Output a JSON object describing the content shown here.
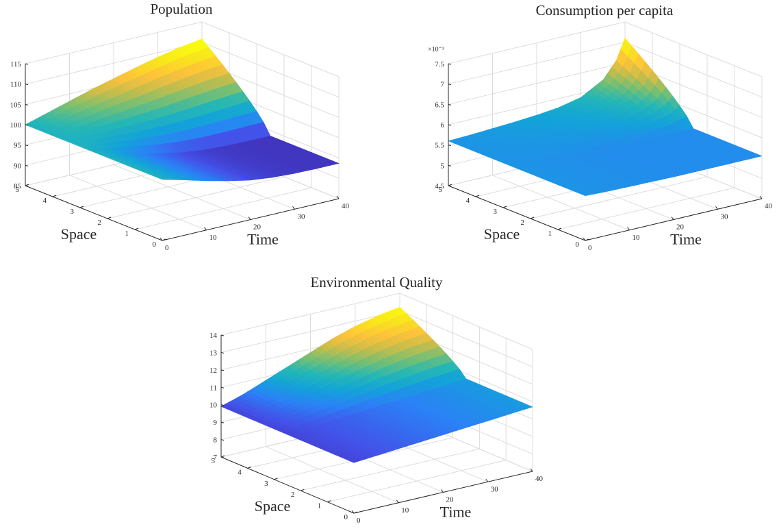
{
  "figure": {
    "colormap": [
      "#3e26a8",
      "#4450e8",
      "#2b81f6",
      "#13a3d9",
      "#25b7b5",
      "#73bf75",
      "#c8bd4a",
      "#fec23b",
      "#f8e51d",
      "#f9fb0e"
    ]
  },
  "chart_data": [
    {
      "type": "surface",
      "title": "Population",
      "xlabel": "Time",
      "ylabel": "Space",
      "zlabel": "",
      "xlim": [
        0,
        40
      ],
      "ylim": [
        0,
        5
      ],
      "zlim": [
        85,
        115
      ],
      "x_ticks": [
        "0",
        "10",
        "20",
        "30",
        "40"
      ],
      "y_ticks": [
        "0",
        "1",
        "2",
        "3",
        "4",
        "5"
      ],
      "z_ticks": [
        "85",
        "90",
        "95",
        "100",
        "105",
        "110",
        "115"
      ],
      "z_exponent": "",
      "grid": true,
      "clim": [
        93,
        110
      ],
      "profile": {
        "x": [
          0,
          5,
          10,
          15,
          20,
          25,
          30,
          35,
          40
        ],
        "boundary_space0": [
          100,
          98.6,
          97.1,
          95.8,
          94.7,
          94.1,
          93.8,
          93.7,
          93.7
        ],
        "boundary_space5": [
          100,
          101.6,
          103.2,
          104.8,
          106.2,
          107.6,
          108.9,
          110.0,
          110.8
        ],
        "interface_space": 2.5
      }
    },
    {
      "type": "surface",
      "title": "Consumption per capita",
      "xlabel": "Time",
      "ylabel": "Space",
      "zlabel": "",
      "xlim": [
        0,
        40
      ],
      "ylim": [
        0,
        5
      ],
      "zlim": [
        4.5,
        7.5
      ],
      "x_ticks": [
        "0",
        "10",
        "20",
        "30",
        "40"
      ],
      "y_ticks": [
        "0",
        "1",
        "2",
        "3",
        "4",
        "5"
      ],
      "z_ticks": [
        "4.5",
        "5",
        "5.5",
        "6",
        "6.5",
        "7",
        "7.5"
      ],
      "z_exponent": "×10⁻³",
      "grid": true,
      "clim": [
        5.0,
        7.1
      ],
      "profile": {
        "x": [
          0,
          5,
          10,
          15,
          20,
          25,
          30,
          35,
          38,
          40
        ],
        "boundary_space0": [
          5.6,
          5.58,
          5.57,
          5.56,
          5.55,
          5.55,
          5.55,
          5.55,
          5.55,
          5.55
        ],
        "boundary_space5": [
          5.6,
          5.62,
          5.65,
          5.68,
          5.72,
          5.78,
          5.9,
          6.2,
          6.6,
          7.1
        ],
        "interface_space": 2.5
      }
    },
    {
      "type": "surface",
      "title": "Environmental Quality",
      "xlabel": "Time",
      "ylabel": "Space",
      "zlabel": "",
      "xlim": [
        0,
        40
      ],
      "ylim": [
        0,
        5
      ],
      "zlim": [
        7,
        14
      ],
      "x_ticks": [
        "0",
        "10",
        "20",
        "30",
        "40"
      ],
      "y_ticks": [
        "0",
        "1",
        "2",
        "3",
        "4",
        "5"
      ],
      "z_ticks": [
        "7",
        "8",
        "9",
        "10",
        "11",
        "12",
        "13",
        "14"
      ],
      "z_exponent": "",
      "grid": true,
      "clim": [
        9.6,
        13.2
      ],
      "profile": {
        "x": [
          0,
          5,
          10,
          15,
          20,
          25,
          30,
          35,
          40
        ],
        "boundary_space0": [
          9.9,
          10.0,
          10.1,
          10.2,
          10.3,
          10.4,
          10.5,
          10.6,
          10.7
        ],
        "boundary_space5": [
          9.9,
          10.3,
          10.8,
          11.3,
          11.8,
          12.3,
          12.7,
          13.0,
          13.2
        ],
        "interface_space": 2.5
      }
    }
  ]
}
